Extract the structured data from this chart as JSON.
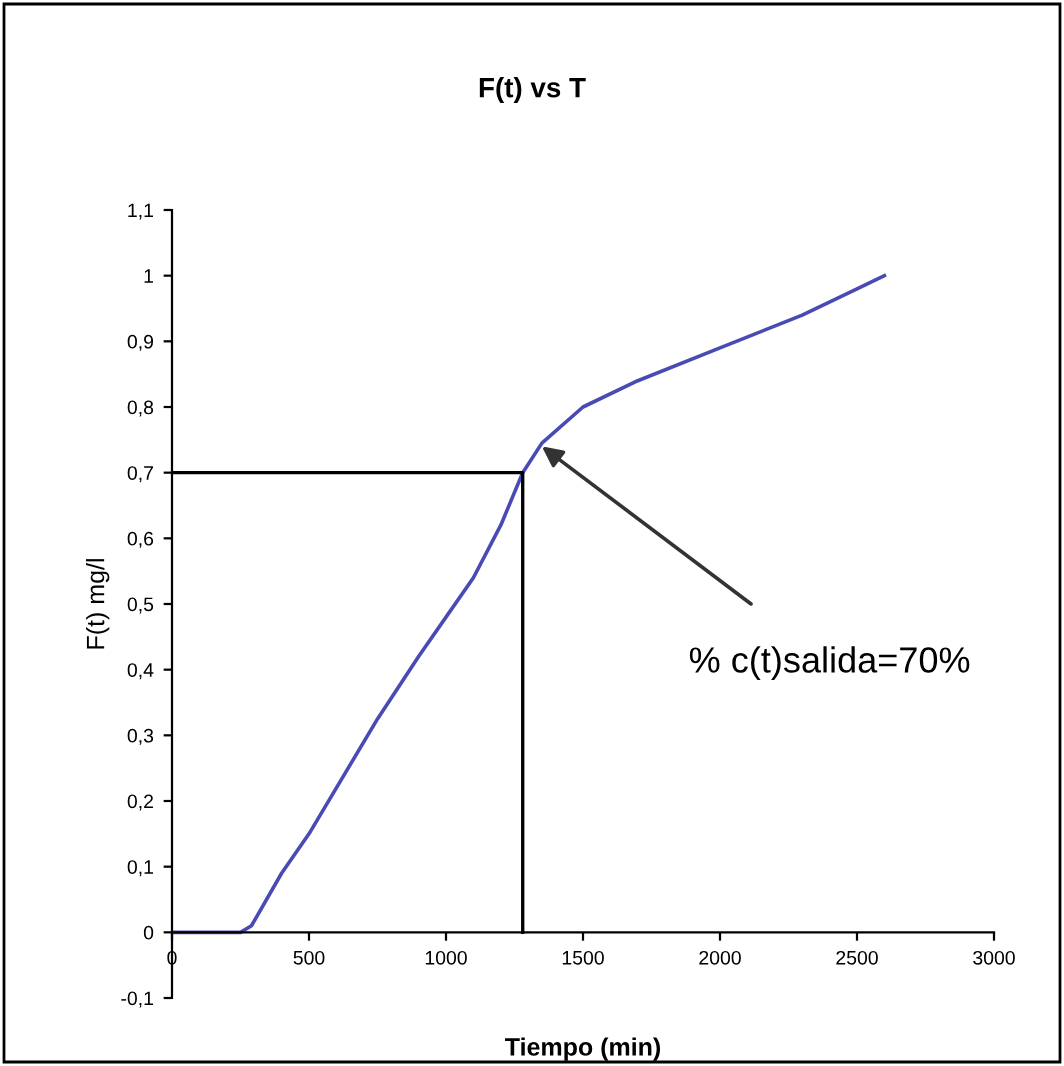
{
  "chart_data": {
    "type": "line",
    "title": "F(t) vs T",
    "xlabel": "Tiempo (min)",
    "ylabel": "F(t) mg/l",
    "xlim": [
      0,
      3000
    ],
    "xticks": [
      0,
      500,
      1000,
      1500,
      2000,
      2500,
      3000
    ],
    "ylim": [
      -0.1,
      1.1
    ],
    "yticks": [
      {
        "value": -0.1,
        "label": "-0,1"
      },
      0,
      {
        "value": 0.1,
        "label": "0,1"
      },
      {
        "value": 0.2,
        "label": "0,2"
      },
      {
        "value": 0.3,
        "label": "0,3"
      },
      {
        "value": 0.4,
        "label": "0,4"
      },
      {
        "value": 0.5,
        "label": "0,5"
      },
      {
        "value": 0.6,
        "label": "0,6"
      },
      {
        "value": 0.7,
        "label": "0,7"
      },
      {
        "value": 0.8,
        "label": "0,8"
      },
      {
        "value": 0.9,
        "label": "0,9"
      },
      1,
      {
        "value": 1.1,
        "label": "1,1"
      }
    ],
    "grid": false,
    "series": [
      {
        "color": "#4a4ab4",
        "x": [
          0,
          250,
          290,
          400,
          500,
          600,
          750,
          900,
          1000,
          1100,
          1200,
          1280,
          1350,
          1500,
          1700,
          2000,
          2300,
          2500,
          2600
        ],
        "values": [
          0,
          0,
          0.01,
          0.09,
          0.15,
          0.22,
          0.325,
          0.42,
          0.48,
          0.54,
          0.62,
          0.7,
          0.745,
          0.8,
          0.84,
          0.89,
          0.94,
          0.98,
          1.0
        ]
      },
      {
        "color": "#000000",
        "x": [
          0,
          1280,
          1280
        ],
        "values": [
          0.7,
          0.7,
          0
        ]
      }
    ],
    "annotations": [
      {
        "text": "% c(t)salida=70%",
        "x": 1350,
        "y": 0.74
      }
    ]
  }
}
